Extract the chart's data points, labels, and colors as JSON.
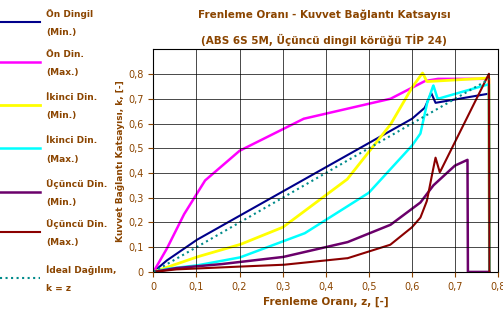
{
  "title_line1": "Frenleme Oranı - Kuvvet Bağlantı Katsayısı",
  "title_line2": "(ABS 6S 5M, Üçüncü dingil körüğü TİP 24)",
  "xlabel": "Frenleme Oranı, z, [-]",
  "ylabel": "Kuvvet Bağlantı Katsayısı, k, [-]",
  "xlim": [
    0,
    0.8
  ],
  "ylim": [
    0,
    0.9
  ],
  "xticks": [
    0,
    0.1,
    0.2,
    0.3,
    0.4,
    0.5,
    0.6,
    0.7,
    0.8
  ],
  "yticks": [
    0,
    0.1,
    0.2,
    0.3,
    0.4,
    0.5,
    0.6,
    0.7,
    0.8
  ],
  "bg_color": "#ffffff",
  "grid_color": "#000000",
  "legend_labels": [
    "Ön Dingil\n(Min.)",
    "Ön Din.\n(Max.)",
    "İkinci Din.\n(Min.)",
    "İkinci Din.\n(Max.)",
    "Üçüncü Din.\n(Min.)",
    "Üçüncü Din.\n(Max.)",
    "İdeal Dağılım,\nk = z"
  ],
  "line_colors": [
    "#00008B",
    "#FF00FF",
    "#FFFF00",
    "#00FFFF",
    "#6B006B",
    "#8B0000",
    "#008B8B"
  ],
  "line_styles": [
    "-",
    "-",
    "-",
    "-",
    "-",
    "-",
    ":"
  ],
  "line_widths": [
    1.5,
    1.8,
    2.0,
    1.8,
    1.8,
    1.5,
    1.5
  ],
  "legend_text_color": "#8B4500",
  "title_color": "#8B4500",
  "axis_label_color": "#8B4500",
  "tick_color": "#8B4500"
}
